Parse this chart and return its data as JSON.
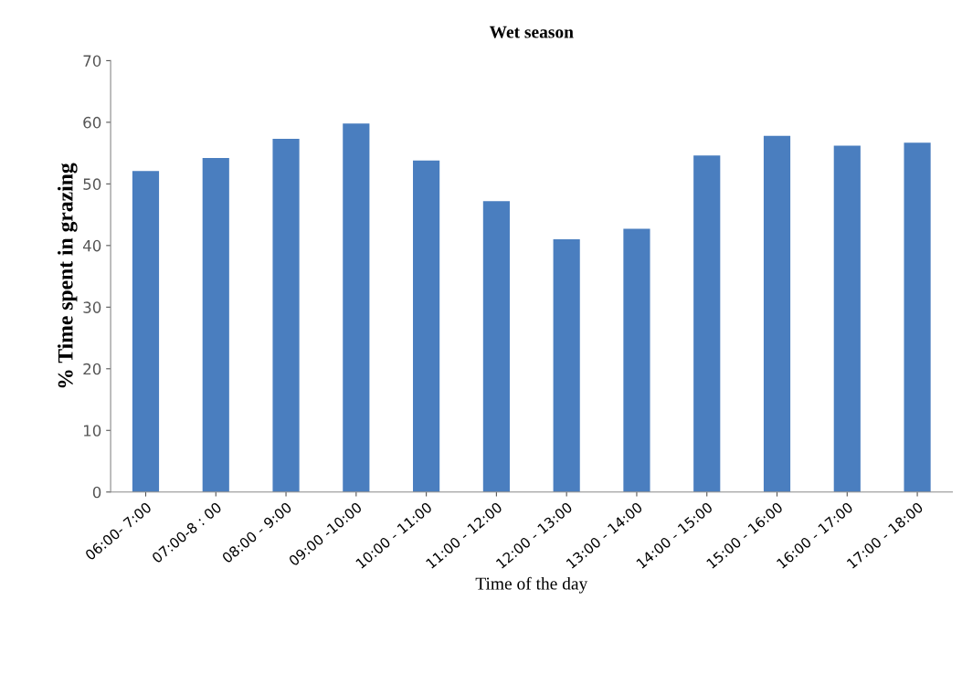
{
  "chart_data": {
    "type": "bar",
    "title": "Wet season",
    "xlabel": "Time of the day",
    "ylabel": "% Time spent in grazing",
    "categories": [
      "06:00- 7:00",
      "07:00-8 : 00",
      "08:00 - 9:00",
      "09:00 -10:00",
      "10:00 - 11:00",
      "11:00 - 12:00",
      "12:00 - 13:00",
      "13:00 - 14:00",
      "14:00 - 15:00",
      "15:00 - 16:00",
      "16:00 - 17:00",
      "17:00 - 18:00"
    ],
    "values": [
      52.1,
      54.2,
      57.3,
      59.8,
      53.8,
      47.2,
      41.0,
      42.7,
      54.6,
      57.8,
      56.2,
      56.7
    ],
    "color": "#4a7ebf",
    "ylim": [
      0,
      70
    ],
    "yticks": [
      0,
      10,
      20,
      30,
      40,
      50,
      60,
      70
    ],
    "grid": false
  }
}
